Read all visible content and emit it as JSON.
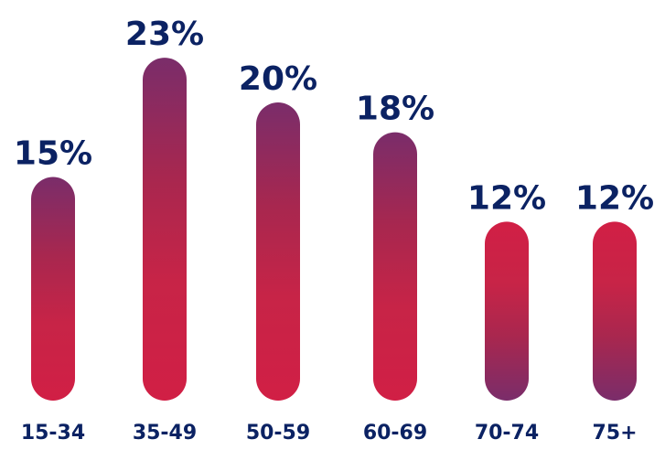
{
  "chart_data": {
    "type": "bar",
    "categories": [
      "15-34",
      "35-49",
      "50-59",
      "60-69",
      "70-74",
      "75+"
    ],
    "values": [
      15,
      23,
      20,
      18,
      12,
      12
    ],
    "value_labels": [
      "15%",
      "23%",
      "20%",
      "18%",
      "12%",
      "12%"
    ],
    "unit": "%",
    "title": "",
    "xlabel": "",
    "ylabel": "",
    "grid": false,
    "legend": "none",
    "colors": {
      "bar_purple": "#7a2d6a",
      "bar_red": "#d11f45",
      "bar_mid": "#a8274f",
      "label_navy": "#0b2263"
    }
  }
}
